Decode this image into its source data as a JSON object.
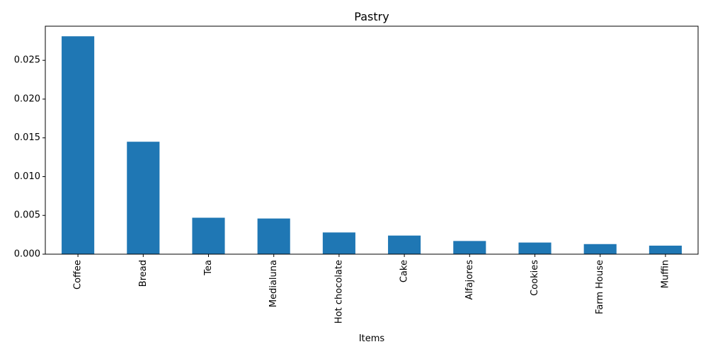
{
  "chart_data": {
    "type": "bar",
    "title": "Pastry",
    "xlabel": "Items",
    "ylabel": "",
    "categories": [
      "Coffee",
      "Bread",
      "Tea",
      "Medialuna",
      "Hot chocolate",
      "Cake",
      "Alfajores",
      "Cookies",
      "Farm House",
      "Muffin"
    ],
    "values": [
      0.0281,
      0.0145,
      0.0047,
      0.0046,
      0.0028,
      0.0024,
      0.0017,
      0.0015,
      0.0013,
      0.0011
    ],
    "ylim": [
      0,
      0.0294
    ],
    "yticks": [
      0,
      0.005,
      0.01,
      0.015,
      0.02,
      0.025
    ],
    "ytick_labels": [
      "0.000",
      "0.005",
      "0.010",
      "0.015",
      "0.020",
      "0.025"
    ],
    "bar_color": "#1f77b4",
    "grid": false,
    "legend": "none"
  }
}
